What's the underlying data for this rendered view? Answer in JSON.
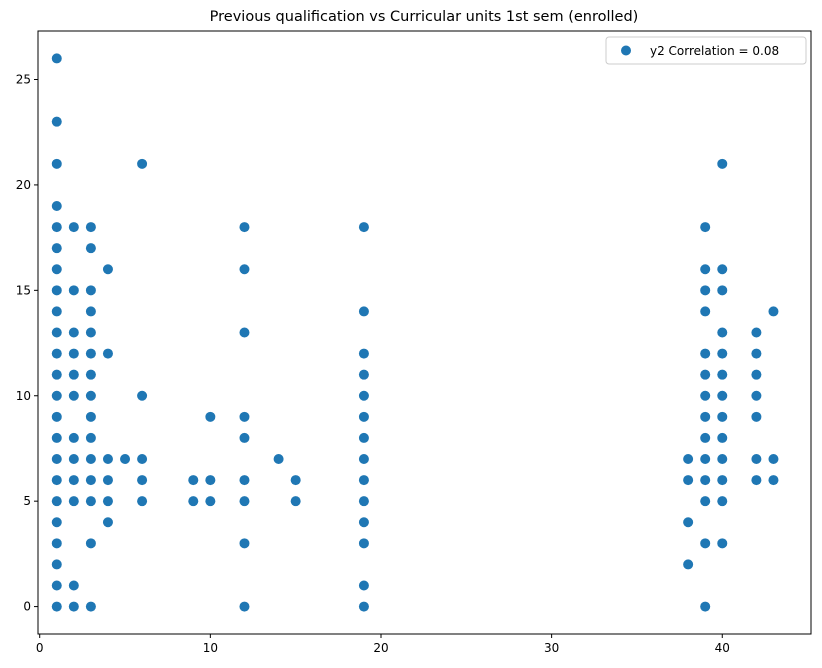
{
  "chart_data": {
    "type": "scatter",
    "title": "Previous qualification vs Curricular units 1st sem (enrolled)",
    "xlabel": "",
    "ylabel": "",
    "xlim": [
      -0.1,
      45.2
    ],
    "ylim": [
      -1.3,
      27.3
    ],
    "xticks": [
      0,
      10,
      20,
      30,
      40
    ],
    "yticks": [
      0,
      5,
      10,
      15,
      20,
      25
    ],
    "grid": false,
    "legend_position": "top-right",
    "series": [
      {
        "name": "y2 Correlation = 0.08",
        "color": "#1f77b4",
        "points": [
          [
            1,
            0
          ],
          [
            1,
            1
          ],
          [
            1,
            2
          ],
          [
            1,
            3
          ],
          [
            1,
            4
          ],
          [
            1,
            5
          ],
          [
            1,
            6
          ],
          [
            1,
            7
          ],
          [
            1,
            8
          ],
          [
            1,
            9
          ],
          [
            1,
            10
          ],
          [
            1,
            11
          ],
          [
            1,
            12
          ],
          [
            1,
            13
          ],
          [
            1,
            14
          ],
          [
            1,
            15
          ],
          [
            1,
            16
          ],
          [
            1,
            17
          ],
          [
            1,
            18
          ],
          [
            1,
            19
          ],
          [
            1,
            21
          ],
          [
            1,
            23
          ],
          [
            1,
            26
          ],
          [
            2,
            0
          ],
          [
            2,
            1
          ],
          [
            2,
            5
          ],
          [
            2,
            6
          ],
          [
            2,
            7
          ],
          [
            2,
            8
          ],
          [
            2,
            10
          ],
          [
            2,
            11
          ],
          [
            2,
            12
          ],
          [
            2,
            13
          ],
          [
            2,
            15
          ],
          [
            2,
            18
          ],
          [
            3,
            0
          ],
          [
            3,
            3
          ],
          [
            3,
            5
          ],
          [
            3,
            6
          ],
          [
            3,
            7
          ],
          [
            3,
            8
          ],
          [
            3,
            9
          ],
          [
            3,
            10
          ],
          [
            3,
            11
          ],
          [
            3,
            12
          ],
          [
            3,
            13
          ],
          [
            3,
            14
          ],
          [
            3,
            15
          ],
          [
            3,
            17
          ],
          [
            3,
            18
          ],
          [
            4,
            4
          ],
          [
            4,
            5
          ],
          [
            4,
            6
          ],
          [
            4,
            7
          ],
          [
            4,
            12
          ],
          [
            4,
            16
          ],
          [
            5,
            7
          ],
          [
            6,
            5
          ],
          [
            6,
            6
          ],
          [
            6,
            7
          ],
          [
            6,
            10
          ],
          [
            6,
            21
          ],
          [
            9,
            5
          ],
          [
            9,
            6
          ],
          [
            10,
            5
          ],
          [
            10,
            6
          ],
          [
            10,
            9
          ],
          [
            12,
            0
          ],
          [
            12,
            3
          ],
          [
            12,
            5
          ],
          [
            12,
            6
          ],
          [
            12,
            8
          ],
          [
            12,
            9
          ],
          [
            12,
            13
          ],
          [
            12,
            16
          ],
          [
            12,
            18
          ],
          [
            14,
            7
          ],
          [
            15,
            5
          ],
          [
            15,
            6
          ],
          [
            19,
            0
          ],
          [
            19,
            1
          ],
          [
            19,
            3
          ],
          [
            19,
            4
          ],
          [
            19,
            5
          ],
          [
            19,
            6
          ],
          [
            19,
            7
          ],
          [
            19,
            8
          ],
          [
            19,
            9
          ],
          [
            19,
            10
          ],
          [
            19,
            11
          ],
          [
            19,
            12
          ],
          [
            19,
            14
          ],
          [
            19,
            18
          ],
          [
            38,
            2
          ],
          [
            38,
            4
          ],
          [
            38,
            6
          ],
          [
            38,
            7
          ],
          [
            39,
            0
          ],
          [
            39,
            3
          ],
          [
            39,
            5
          ],
          [
            39,
            6
          ],
          [
            39,
            7
          ],
          [
            39,
            8
          ],
          [
            39,
            9
          ],
          [
            39,
            10
          ],
          [
            39,
            11
          ],
          [
            39,
            12
          ],
          [
            39,
            14
          ],
          [
            39,
            15
          ],
          [
            39,
            16
          ],
          [
            39,
            18
          ],
          [
            40,
            3
          ],
          [
            40,
            5
          ],
          [
            40,
            6
          ],
          [
            40,
            7
          ],
          [
            40,
            8
          ],
          [
            40,
            9
          ],
          [
            40,
            10
          ],
          [
            40,
            11
          ],
          [
            40,
            12
          ],
          [
            40,
            13
          ],
          [
            40,
            15
          ],
          [
            40,
            16
          ],
          [
            40,
            21
          ],
          [
            42,
            6
          ],
          [
            42,
            7
          ],
          [
            42,
            9
          ],
          [
            42,
            10
          ],
          [
            42,
            11
          ],
          [
            42,
            12
          ],
          [
            42,
            13
          ],
          [
            43,
            6
          ],
          [
            43,
            7
          ],
          [
            43,
            14
          ]
        ]
      }
    ]
  }
}
